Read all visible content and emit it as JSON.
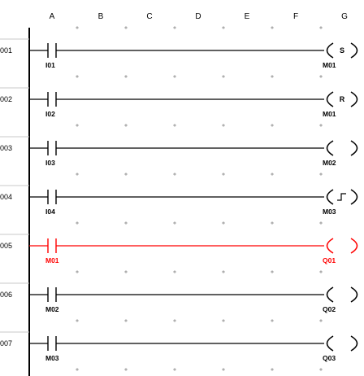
{
  "editor": {
    "columns": [
      "A",
      "B",
      "C",
      "D",
      "E",
      "F",
      "G"
    ],
    "colors": {
      "normal": "#000000",
      "active": "#ff0000",
      "grid": "#707070"
    },
    "rungs": [
      {
        "number": "001",
        "contact": "I01",
        "coil": "M01",
        "coil_mark": "S",
        "coil_type": "set",
        "active": false
      },
      {
        "number": "002",
        "contact": "I02",
        "coil": "M01",
        "coil_mark": "R",
        "coil_type": "reset",
        "active": false
      },
      {
        "number": "003",
        "contact": "I03",
        "coil": "M02",
        "coil_mark": "",
        "coil_type": "normal",
        "active": false
      },
      {
        "number": "004",
        "contact": "I04",
        "coil": "M03",
        "coil_mark": "",
        "coil_type": "pulse",
        "active": false
      },
      {
        "number": "005",
        "contact": "M01",
        "coil": "Q01",
        "coil_mark": "",
        "coil_type": "normal",
        "active": true
      },
      {
        "number": "006",
        "contact": "M02",
        "coil": "Q02",
        "coil_mark": "",
        "coil_type": "normal",
        "active": false
      },
      {
        "number": "007",
        "contact": "M03",
        "coil": "Q03",
        "coil_mark": "",
        "coil_type": "normal",
        "active": false
      }
    ]
  }
}
